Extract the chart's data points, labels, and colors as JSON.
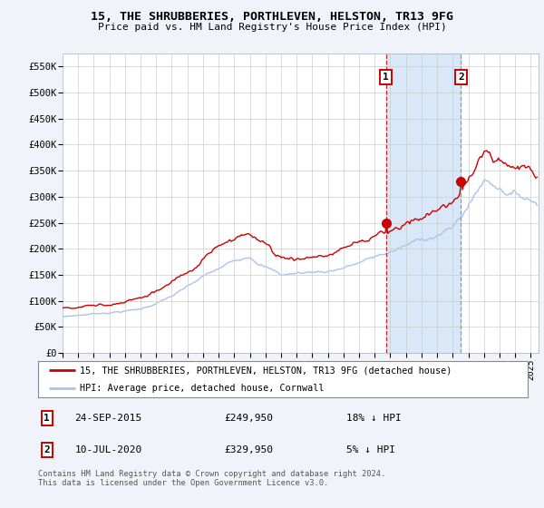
{
  "title": "15, THE SHRUBBERIES, PORTHLEVEN, HELSTON, TR13 9FG",
  "subtitle": "Price paid vs. HM Land Registry's House Price Index (HPI)",
  "ylabel_ticks": [
    "£0",
    "£50K",
    "£100K",
    "£150K",
    "£200K",
    "£250K",
    "£300K",
    "£350K",
    "£400K",
    "£450K",
    "£500K",
    "£550K"
  ],
  "ytick_vals": [
    0,
    50000,
    100000,
    150000,
    200000,
    250000,
    300000,
    350000,
    400000,
    450000,
    500000,
    550000
  ],
  "ylim": [
    0,
    575000
  ],
  "xlim_start": 1995.0,
  "xlim_end": 2025.5,
  "xtick_years": [
    1995,
    1996,
    1997,
    1998,
    1999,
    2000,
    2001,
    2002,
    2003,
    2004,
    2005,
    2006,
    2007,
    2008,
    2009,
    2010,
    2011,
    2012,
    2013,
    2014,
    2015,
    2016,
    2017,
    2018,
    2019,
    2020,
    2021,
    2022,
    2023,
    2024,
    2025
  ],
  "hpi_color": "#aac4e8",
  "price_color": "#cc0000",
  "transaction1_date": 2015.73,
  "transaction1_price": 249950,
  "transaction1_label": "1",
  "transaction1_hpi_pct": "18% ↓ HPI",
  "transaction1_date_str": "24-SEP-2015",
  "transaction2_date": 2020.53,
  "transaction2_price": 329950,
  "transaction2_label": "2",
  "transaction2_hpi_pct": "5% ↓ HPI",
  "transaction2_date_str": "10-JUL-2020",
  "legend_label1": "15, THE SHRUBBERIES, PORTHLEVEN, HELSTON, TR13 9FG (detached house)",
  "legend_label2": "HPI: Average price, detached house, Cornwall",
  "footer": "Contains HM Land Registry data © Crown copyright and database right 2024.\nThis data is licensed under the Open Government Licence v3.0.",
  "background_color": "#f0f4fa",
  "plot_bg_color": "#ffffff",
  "grid_color": "#cccccc",
  "span_color": "#d8e8f8"
}
